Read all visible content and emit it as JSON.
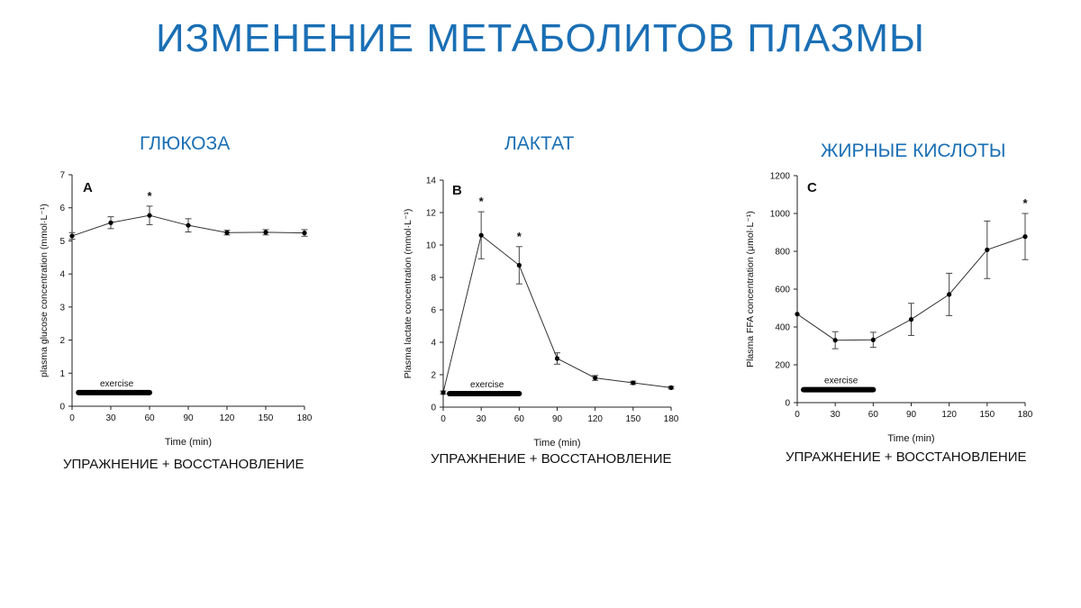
{
  "slide": {
    "title": "ИЗМЕНЕНИЕ МЕТАБОЛИТОВ ПЛАЗМЫ",
    "panels": [
      {
        "subtitle": "ГЛЮКОЗА",
        "caption": "УПРАЖНЕНИЕ  +   ВОССТАНОВЛЕНИЕ"
      },
      {
        "subtitle": "ЛАКТАТ",
        "caption": "УПРАЖНЕНИЕ  +   ВОССТАНОВЛЕНИЕ"
      },
      {
        "subtitle": "ЖИРНЫЕ КИСЛОТЫ",
        "caption": "УПРАЖНЕНИЕ  +   ВОССТАНОВЛЕНИЕ"
      }
    ]
  },
  "chart_data": [
    {
      "type": "line",
      "panel_letter": "A",
      "x": [
        0,
        30,
        60,
        90,
        120,
        150,
        180
      ],
      "y": [
        5.15,
        5.55,
        5.77,
        5.47,
        5.25,
        5.26,
        5.24
      ],
      "error": [
        0.1,
        0.18,
        0.28,
        0.2,
        0.07,
        0.08,
        0.1
      ],
      "significant": [
        false,
        false,
        true,
        false,
        false,
        false,
        false
      ],
      "xlabel": "Time (min)",
      "ylabel": "plasma glucose concentration (mmol·L⁻¹)",
      "xlim": [
        0,
        180
      ],
      "ylim": [
        0,
        7
      ],
      "xticks": [
        0,
        30,
        60,
        90,
        120,
        150,
        180
      ],
      "yticks": [
        0,
        1,
        2,
        3,
        4,
        5,
        6,
        7
      ],
      "annotation": {
        "text": "exercise",
        "x_range": [
          5,
          60
        ],
        "y": 0.25
      },
      "marker": "*",
      "grid": false
    },
    {
      "type": "line",
      "panel_letter": "B",
      "x": [
        0,
        30,
        60,
        90,
        120,
        150,
        180
      ],
      "y": [
        0.9,
        10.6,
        8.75,
        3.0,
        1.8,
        1.5,
        1.2
      ],
      "error": [
        0.1,
        1.45,
        1.15,
        0.35,
        0.15,
        0.1,
        0.08
      ],
      "significant": [
        false,
        true,
        true,
        false,
        false,
        false,
        false
      ],
      "xlabel": "Time (min)",
      "ylabel": "Plasma lactate concentration (mmol·L⁻¹)",
      "xlim": [
        0,
        180
      ],
      "ylim": [
        0,
        14
      ],
      "xticks": [
        0,
        30,
        60,
        90,
        120,
        150,
        180
      ],
      "yticks": [
        0,
        2,
        4,
        6,
        8,
        10,
        12,
        14
      ],
      "annotation": {
        "text": "exercise",
        "x_range": [
          5,
          60
        ],
        "y": 0.5
      },
      "marker": "*",
      "grid": false
    },
    {
      "type": "line",
      "panel_letter": "C",
      "x": [
        0,
        30,
        60,
        90,
        120,
        150,
        180
      ],
      "y": [
        468,
        330,
        332,
        440,
        572,
        808,
        878
      ],
      "error": [
        0,
        45,
        40,
        85,
        112,
        152,
        122
      ],
      "significant": [
        false,
        false,
        false,
        false,
        false,
        false,
        true
      ],
      "xlabel": "Time (min)",
      "ylabel": "Plasma FFA concentration (μmol·L⁻¹)",
      "xlim": [
        0,
        180
      ],
      "ylim": [
        0,
        1200
      ],
      "xticks": [
        0,
        30,
        60,
        90,
        120,
        150,
        180
      ],
      "yticks": [
        0,
        200,
        400,
        600,
        800,
        1000,
        1200
      ],
      "annotation": {
        "text": "exercise",
        "x_range": [
          5,
          60
        ],
        "y": 40
      },
      "marker": "*",
      "grid": false
    }
  ]
}
